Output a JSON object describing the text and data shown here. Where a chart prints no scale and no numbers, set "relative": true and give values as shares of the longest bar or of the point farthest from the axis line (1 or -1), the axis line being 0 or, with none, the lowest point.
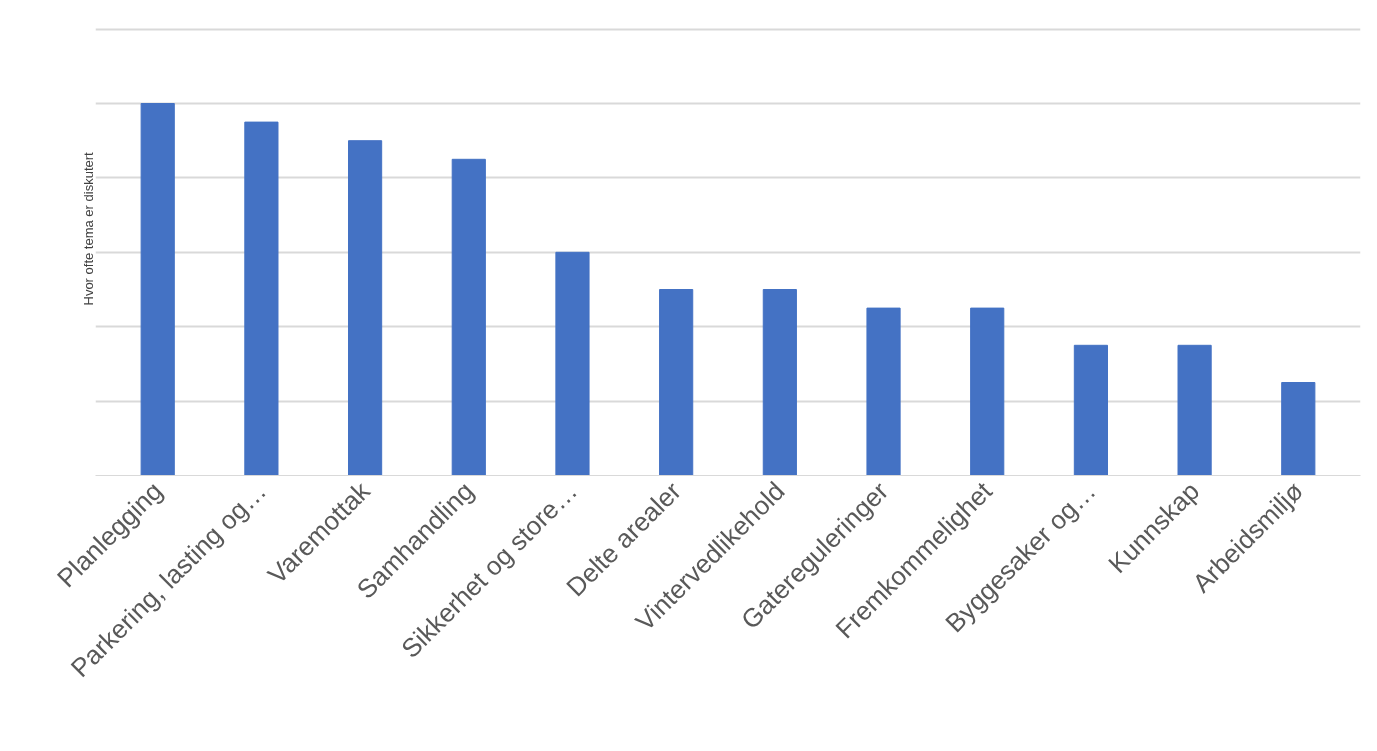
{
  "chart_data": {
    "type": "bar",
    "ylabel": "Hvor ofte tema er diskutert",
    "relative": true,
    "grid": "y",
    "color": "#4472c4",
    "categories": [
      "Planlegging",
      "Parkering, lasting og…",
      "Varemottak",
      "Samhandling",
      "Sikkerhet og store…",
      "Delte arealer",
      "Vintervedlikehold",
      "Gatereguleringer",
      "Fremkommelighet",
      "Byggesaker og…",
      "Kunnskap",
      "Arbeidsmiljø"
    ],
    "values": [
      1,
      0.95,
      0.9,
      0.85,
      0.6,
      0.5,
      0.5,
      0.45,
      0.45,
      0.35,
      0.35,
      0.25
    ]
  }
}
